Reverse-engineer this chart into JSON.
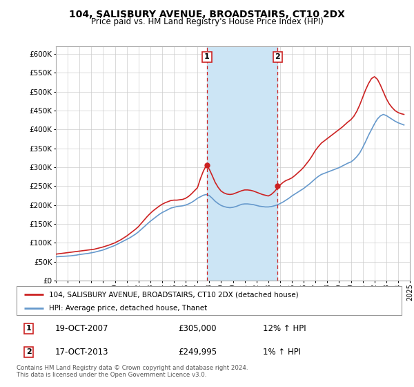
{
  "title": "104, SALISBURY AVENUE, BROADSTAIRS, CT10 2DX",
  "subtitle": "Price paid vs. HM Land Registry's House Price Index (HPI)",
  "legend_line1": "104, SALISBURY AVENUE, BROADSTAIRS, CT10 2DX (detached house)",
  "legend_line2": "HPI: Average price, detached house, Thanet",
  "annotation1_label": "1",
  "annotation1_date": "19-OCT-2007",
  "annotation1_price": "£305,000",
  "annotation1_hpi": "12% ↑ HPI",
  "annotation1_year": 2007.8,
  "annotation1_value": 305000,
  "annotation2_label": "2",
  "annotation2_date": "17-OCT-2013",
  "annotation2_price": "£249,995",
  "annotation2_hpi": "1% ↑ HPI",
  "annotation2_year": 2013.8,
  "annotation2_value": 249995,
  "hpi_color": "#6699cc",
  "price_color": "#cc2222",
  "shaded_color": "#cce5f5",
  "background_color": "#ffffff",
  "grid_color": "#cccccc",
  "ylim": [
    0,
    620000
  ],
  "yticks": [
    0,
    50000,
    100000,
    150000,
    200000,
    250000,
    300000,
    350000,
    400000,
    450000,
    500000,
    550000,
    600000
  ],
  "footer": "Contains HM Land Registry data © Crown copyright and database right 2024.\nThis data is licensed under the Open Government Licence v3.0.",
  "hpi_years": [
    1995.0,
    1995.25,
    1995.5,
    1995.75,
    1996.0,
    1996.25,
    1996.5,
    1996.75,
    1997.0,
    1997.25,
    1997.5,
    1997.75,
    1998.0,
    1998.25,
    1998.5,
    1998.75,
    1999.0,
    1999.25,
    1999.5,
    1999.75,
    2000.0,
    2000.25,
    2000.5,
    2000.75,
    2001.0,
    2001.25,
    2001.5,
    2001.75,
    2002.0,
    2002.25,
    2002.5,
    2002.75,
    2003.0,
    2003.25,
    2003.5,
    2003.75,
    2004.0,
    2004.25,
    2004.5,
    2004.75,
    2005.0,
    2005.25,
    2005.5,
    2005.75,
    2006.0,
    2006.25,
    2006.5,
    2006.75,
    2007.0,
    2007.25,
    2007.5,
    2007.75,
    2008.0,
    2008.25,
    2008.5,
    2008.75,
    2009.0,
    2009.25,
    2009.5,
    2009.75,
    2010.0,
    2010.25,
    2010.5,
    2010.75,
    2011.0,
    2011.25,
    2011.5,
    2011.75,
    2012.0,
    2012.25,
    2012.5,
    2012.75,
    2013.0,
    2013.25,
    2013.5,
    2013.75,
    2014.0,
    2014.25,
    2014.5,
    2014.75,
    2015.0,
    2015.25,
    2015.5,
    2015.75,
    2016.0,
    2016.25,
    2016.5,
    2016.75,
    2017.0,
    2017.25,
    2017.5,
    2017.75,
    2018.0,
    2018.25,
    2018.5,
    2018.75,
    2019.0,
    2019.25,
    2019.5,
    2019.75,
    2020.0,
    2020.25,
    2020.5,
    2020.75,
    2021.0,
    2021.25,
    2021.5,
    2021.75,
    2022.0,
    2022.25,
    2022.5,
    2022.75,
    2023.0,
    2023.25,
    2023.5,
    2023.75,
    2024.0,
    2024.25,
    2024.5
  ],
  "hpi_values": [
    63000,
    63500,
    64000,
    64500,
    65000,
    65500,
    66500,
    67500,
    69000,
    70000,
    71000,
    72000,
    73500,
    75000,
    77000,
    79000,
    81000,
    84000,
    87000,
    90000,
    93000,
    97000,
    101000,
    105000,
    109000,
    113000,
    118000,
    123000,
    129000,
    136000,
    143000,
    150000,
    157000,
    163000,
    169000,
    175000,
    180000,
    184000,
    188000,
    192000,
    194000,
    196000,
    197000,
    198000,
    200000,
    203000,
    207000,
    212000,
    218000,
    222000,
    226000,
    228000,
    225000,
    218000,
    210000,
    204000,
    199000,
    196000,
    194000,
    193000,
    194000,
    196000,
    199000,
    202000,
    203000,
    203000,
    202000,
    201000,
    199000,
    197000,
    196000,
    195000,
    195000,
    196000,
    198000,
    200000,
    204000,
    208000,
    213000,
    218000,
    224000,
    229000,
    234000,
    239000,
    244000,
    250000,
    256000,
    263000,
    270000,
    276000,
    281000,
    284000,
    287000,
    290000,
    293000,
    296000,
    299000,
    303000,
    307000,
    311000,
    314000,
    320000,
    328000,
    338000,
    352000,
    368000,
    385000,
    400000,
    415000,
    428000,
    436000,
    440000,
    437000,
    432000,
    427000,
    422000,
    418000,
    415000,
    412000
  ],
  "price_years": [
    1995.0,
    1995.25,
    1995.5,
    1995.75,
    1996.0,
    1996.25,
    1996.5,
    1996.75,
    1997.0,
    1997.25,
    1997.5,
    1997.75,
    1998.0,
    1998.25,
    1998.5,
    1998.75,
    1999.0,
    1999.25,
    1999.5,
    1999.75,
    2000.0,
    2000.25,
    2000.5,
    2000.75,
    2001.0,
    2001.25,
    2001.5,
    2001.75,
    2002.0,
    2002.25,
    2002.5,
    2002.75,
    2003.0,
    2003.25,
    2003.5,
    2003.75,
    2004.0,
    2004.25,
    2004.5,
    2004.75,
    2005.0,
    2005.25,
    2005.5,
    2005.75,
    2006.0,
    2006.25,
    2006.5,
    2006.75,
    2007.0,
    2007.25,
    2007.5,
    2007.75,
    2008.0,
    2008.25,
    2008.5,
    2008.75,
    2009.0,
    2009.25,
    2009.5,
    2009.75,
    2010.0,
    2010.25,
    2010.5,
    2010.75,
    2011.0,
    2011.25,
    2011.5,
    2011.75,
    2012.0,
    2012.25,
    2012.5,
    2012.75,
    2013.0,
    2013.25,
    2013.5,
    2013.75,
    2014.0,
    2014.25,
    2014.5,
    2014.75,
    2015.0,
    2015.25,
    2015.5,
    2015.75,
    2016.0,
    2016.25,
    2016.5,
    2016.75,
    2017.0,
    2017.25,
    2017.5,
    2017.75,
    2018.0,
    2018.25,
    2018.5,
    2018.75,
    2019.0,
    2019.25,
    2019.5,
    2019.75,
    2020.0,
    2020.25,
    2020.5,
    2020.75,
    2021.0,
    2021.25,
    2021.5,
    2021.75,
    2022.0,
    2022.25,
    2022.5,
    2022.75,
    2023.0,
    2023.25,
    2023.5,
    2023.75,
    2024.0,
    2024.25,
    2024.5
  ],
  "price_values": [
    70000,
    71000,
    72000,
    73000,
    74000,
    75000,
    76000,
    77000,
    78000,
    79000,
    80000,
    81000,
    82000,
    83000,
    85000,
    87000,
    89000,
    91500,
    94000,
    97000,
    100000,
    104000,
    108000,
    113000,
    118000,
    124000,
    130000,
    136000,
    143000,
    152000,
    161000,
    170000,
    178000,
    185000,
    191000,
    197000,
    202000,
    206000,
    209000,
    212000,
    213000,
    213000,
    214000,
    215000,
    218000,
    223000,
    230000,
    238000,
    246000,
    270000,
    290000,
    305000,
    295000,
    278000,
    260000,
    247000,
    237000,
    232000,
    229000,
    228000,
    229000,
    232000,
    235000,
    238000,
    240000,
    240000,
    239000,
    237000,
    234000,
    231000,
    228000,
    226000,
    224000,
    228000,
    235000,
    244000,
    253000,
    260000,
    265000,
    268000,
    272000,
    278000,
    285000,
    292000,
    300000,
    310000,
    320000,
    332000,
    345000,
    355000,
    364000,
    370000,
    376000,
    382000,
    388000,
    394000,
    400000,
    406000,
    413000,
    420000,
    426000,
    435000,
    448000,
    465000,
    485000,
    505000,
    522000,
    535000,
    540000,
    533000,
    518000,
    500000,
    482000,
    468000,
    458000,
    450000,
    445000,
    442000,
    440000
  ],
  "xlim": [
    1995,
    2025
  ],
  "xtick_years": [
    1995,
    1996,
    1997,
    1998,
    1999,
    2000,
    2001,
    2002,
    2003,
    2004,
    2005,
    2006,
    2007,
    2008,
    2009,
    2010,
    2011,
    2012,
    2013,
    2014,
    2015,
    2016,
    2017,
    2018,
    2019,
    2020,
    2021,
    2022,
    2023,
    2024,
    2025
  ]
}
